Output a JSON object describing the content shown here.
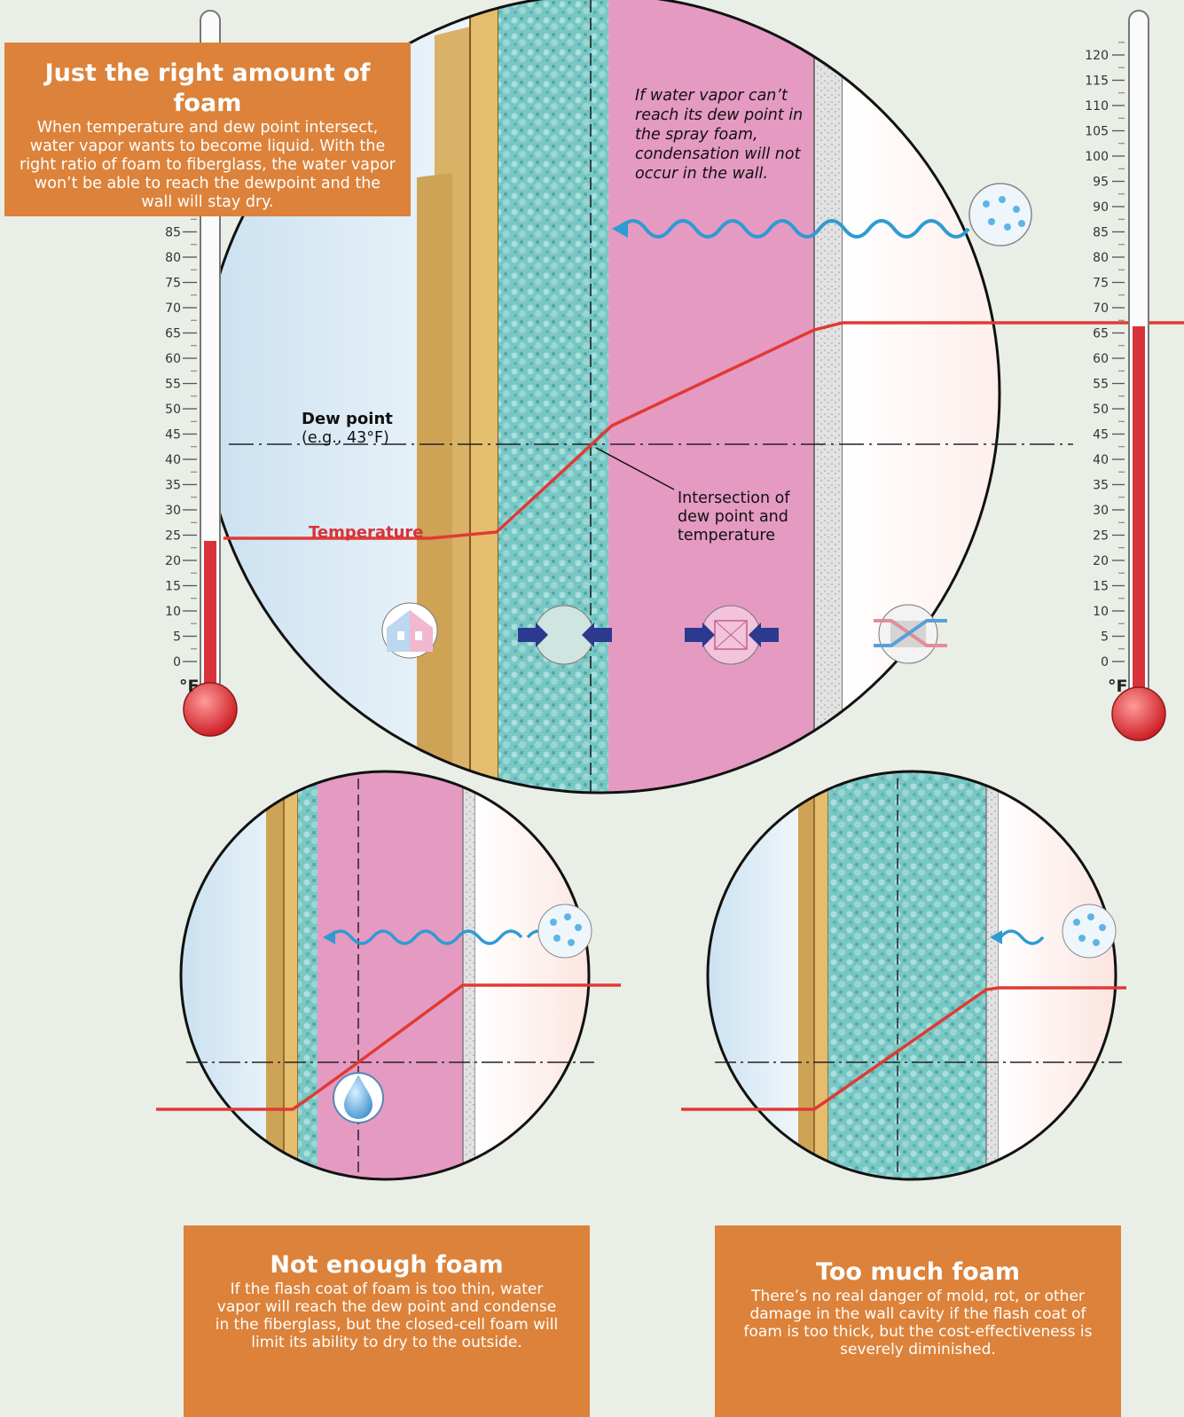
{
  "main_box": {
    "title": "Just the right amount of foam",
    "text": "When temperature and dew point intersect, water vapor wants to become liquid. With the right ratio of foam to fiberglass, the water vapor won’t be able to reach the dewpoint and the wall will stay dry."
  },
  "note": "If water vapor can’t reach its dew point in the spray foam, condensation will not occur in the wall.",
  "dew_point": {
    "title": "Dew point",
    "example": "(e.g., 43°F)"
  },
  "temperature_label": "Temperature",
  "intersection_label": "Intersection of dew point and temperature",
  "thermometer": {
    "unit": "°F",
    "left_ticks": [
      "0",
      "5",
      "10",
      "15",
      "20",
      "25",
      "30",
      "35",
      "40",
      "45",
      "50",
      "55",
      "60",
      "65",
      "70",
      "75",
      "80",
      "85"
    ],
    "right_ticks": [
      "0",
      "5",
      "10",
      "15",
      "20",
      "25",
      "30",
      "35",
      "40",
      "45",
      "50",
      "55",
      "60",
      "65",
      "70",
      "75",
      "80",
      "85",
      "90",
      "95",
      "100",
      "105",
      "110",
      "115",
      "120"
    ],
    "left_reading": 25,
    "right_reading": 68,
    "mercury_color": "#d8323a"
  },
  "not_enough": {
    "title": "Not enough foam",
    "text": "If the flash coat of foam is too thin, water vapor will reach the dew point and condense in the fiberglass, but the closed-cell foam will limit its ability to dry to the outside."
  },
  "too_much": {
    "title": "Too much foam",
    "text": "There’s no real danger of mold, rot, or other damage in the wall cavity if the flash coat of foam is too thick, but the cost-effectiveness is severely diminished."
  },
  "colors": {
    "foam": "#79c7c5",
    "fiberglass": "#e6a5c8",
    "sheathing": "#d9b267",
    "box": "#dc823a",
    "temperature_line": "#e03a34",
    "vapor_line": "#2e9bd3"
  },
  "icons": [
    "house-icon",
    "foam-compress-icon",
    "fiberglass-compress-icon",
    "heat-exchange-icon",
    "vapor-bubble-icon",
    "water-drop-icon"
  ]
}
